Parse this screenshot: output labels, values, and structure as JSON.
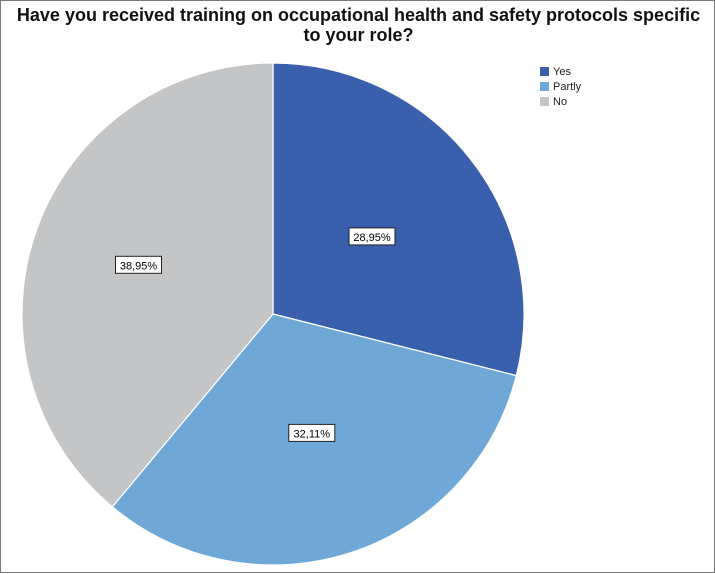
{
  "chart_data": {
    "type": "pie",
    "title_lines": [
      "Have you received training on occupational health and safety protocols specific",
      "to your role?"
    ],
    "categories": [
      "Yes",
      "Partly",
      "No"
    ],
    "values": [
      28.95,
      32.11,
      38.95
    ],
    "data_labels": [
      "28,95%",
      "32,11%",
      "38,95%"
    ],
    "colors": [
      "#3a5fad",
      "#6fa7d6",
      "#c4c5c7"
    ],
    "start_angle_deg": 0,
    "direction": "clockwise",
    "legend_position": "top-right"
  }
}
